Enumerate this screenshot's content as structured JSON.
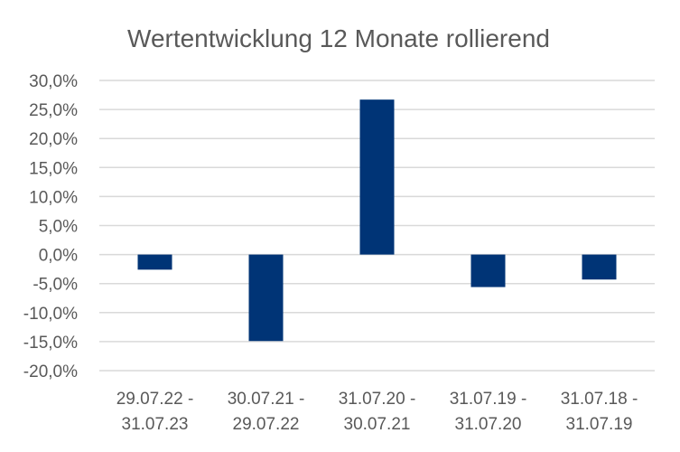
{
  "chart_data": {
    "type": "bar",
    "title": "Wertentwicklung 12 Monate rollierend",
    "categories": [
      [
        "29.07.22 -",
        "31.07.23"
      ],
      [
        "30.07.21 -",
        "29.07.22"
      ],
      [
        "31.07.20 -",
        "30.07.21"
      ],
      [
        "31.07.19 -",
        "31.07.20"
      ],
      [
        "31.07.18 -",
        "31.07.19"
      ]
    ],
    "values": [
      -2.6,
      -14.9,
      26.7,
      -5.6,
      -4.3
    ],
    "ylim": [
      -20,
      30
    ],
    "yticks": [
      30,
      25,
      20,
      15,
      10,
      5,
      0,
      -5,
      -10,
      -15,
      -20
    ],
    "ytick_labels": [
      "30,0%",
      "25,0%",
      "20,0%",
      "15,0%",
      "10,0%",
      "5,0%",
      "0,0%",
      "-5,0%",
      "-10,0%",
      "-15,0%",
      "-20,0%"
    ],
    "grid": true,
    "legend": "none",
    "bar_color": "#003476"
  }
}
